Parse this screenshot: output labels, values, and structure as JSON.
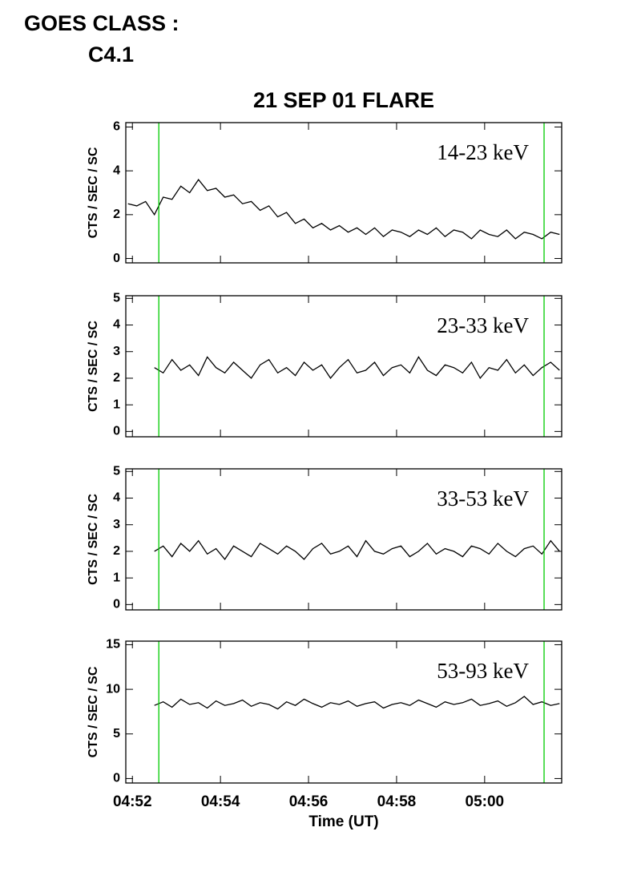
{
  "header": {
    "label": "GOES CLASS :",
    "value": "C4.1"
  },
  "chart_data": [
    {
      "type": "line",
      "title": "21 SEP 01 FLARE",
      "ylabel": "CTS / SEC / SC",
      "annotation": "14-23 keV",
      "xlim": [
        -0.15,
        9.75
      ],
      "ylim": [
        -0.2,
        6.2
      ],
      "yticks": [
        0,
        2,
        4,
        6
      ],
      "vlines": [
        0.6,
        9.35
      ],
      "vline_color": "#00cc00",
      "color": "#000000",
      "x": [
        -0.1,
        0.1,
        0.3,
        0.5,
        0.7,
        0.9,
        1.1,
        1.3,
        1.5,
        1.7,
        1.9,
        2.1,
        2.3,
        2.5,
        2.7,
        2.9,
        3.1,
        3.3,
        3.5,
        3.7,
        3.9,
        4.1,
        4.3,
        4.5,
        4.7,
        4.9,
        5.1,
        5.3,
        5.5,
        5.7,
        5.9,
        6.1,
        6.3,
        6.5,
        6.7,
        6.9,
        7.1,
        7.3,
        7.5,
        7.7,
        7.9,
        8.1,
        8.3,
        8.5,
        8.7,
        8.9,
        9.1,
        9.3,
        9.5,
        9.7
      ],
      "values": [
        2.5,
        2.4,
        2.6,
        2.0,
        2.8,
        2.7,
        3.3,
        3.0,
        3.6,
        3.1,
        3.2,
        2.8,
        2.9,
        2.5,
        2.6,
        2.2,
        2.4,
        1.9,
        2.1,
        1.6,
        1.8,
        1.4,
        1.6,
        1.3,
        1.5,
        1.2,
        1.4,
        1.1,
        1.4,
        1.0,
        1.3,
        1.2,
        1.0,
        1.3,
        1.1,
        1.4,
        1.0,
        1.3,
        1.2,
        0.9,
        1.3,
        1.1,
        1.0,
        1.3,
        0.9,
        1.2,
        1.1,
        0.9,
        1.2,
        1.1
      ]
    },
    {
      "type": "line",
      "ylabel": "CTS / SEC / SC",
      "annotation": "23-33 keV",
      "xlim": [
        -0.15,
        9.75
      ],
      "ylim": [
        -0.2,
        5.1
      ],
      "yticks": [
        0,
        1,
        2,
        3,
        4,
        5
      ],
      "vlines": [
        0.6,
        9.35
      ],
      "vline_color": "#00cc00",
      "color": "#000000",
      "x": [
        0.5,
        0.7,
        0.9,
        1.1,
        1.3,
        1.5,
        1.7,
        1.9,
        2.1,
        2.3,
        2.5,
        2.7,
        2.9,
        3.1,
        3.3,
        3.5,
        3.7,
        3.9,
        4.1,
        4.3,
        4.5,
        4.7,
        4.9,
        5.1,
        5.3,
        5.5,
        5.7,
        5.9,
        6.1,
        6.3,
        6.5,
        6.7,
        6.9,
        7.1,
        7.3,
        7.5,
        7.7,
        7.9,
        8.1,
        8.3,
        8.5,
        8.7,
        8.9,
        9.1,
        9.3,
        9.5,
        9.7
      ],
      "values": [
        2.4,
        2.2,
        2.7,
        2.3,
        2.5,
        2.1,
        2.8,
        2.4,
        2.2,
        2.6,
        2.3,
        2.0,
        2.5,
        2.7,
        2.2,
        2.4,
        2.1,
        2.6,
        2.3,
        2.5,
        2.0,
        2.4,
        2.7,
        2.2,
        2.3,
        2.6,
        2.1,
        2.4,
        2.5,
        2.2,
        2.8,
        2.3,
        2.1,
        2.5,
        2.4,
        2.2,
        2.6,
        2.0,
        2.4,
        2.3,
        2.7,
        2.2,
        2.5,
        2.1,
        2.4,
        2.6,
        2.3
      ]
    },
    {
      "type": "line",
      "ylabel": "CTS / SEC / SC",
      "annotation": "33-53 keV",
      "xlim": [
        -0.15,
        9.75
      ],
      "ylim": [
        -0.2,
        5.1
      ],
      "yticks": [
        0,
        1,
        2,
        3,
        4,
        5
      ],
      "vlines": [
        0.6,
        9.35
      ],
      "vline_color": "#00cc00",
      "color": "#000000",
      "x": [
        0.5,
        0.7,
        0.9,
        1.1,
        1.3,
        1.5,
        1.7,
        1.9,
        2.1,
        2.3,
        2.5,
        2.7,
        2.9,
        3.1,
        3.3,
        3.5,
        3.7,
        3.9,
        4.1,
        4.3,
        4.5,
        4.7,
        4.9,
        5.1,
        5.3,
        5.5,
        5.7,
        5.9,
        6.1,
        6.3,
        6.5,
        6.7,
        6.9,
        7.1,
        7.3,
        7.5,
        7.7,
        7.9,
        8.1,
        8.3,
        8.5,
        8.7,
        8.9,
        9.1,
        9.3,
        9.5,
        9.7
      ],
      "values": [
        2.0,
        2.2,
        1.8,
        2.3,
        2.0,
        2.4,
        1.9,
        2.1,
        1.7,
        2.2,
        2.0,
        1.8,
        2.3,
        2.1,
        1.9,
        2.2,
        2.0,
        1.7,
        2.1,
        2.3,
        1.9,
        2.0,
        2.2,
        1.8,
        2.4,
        2.0,
        1.9,
        2.1,
        2.2,
        1.8,
        2.0,
        2.3,
        1.9,
        2.1,
        2.0,
        1.8,
        2.2,
        2.1,
        1.9,
        2.3,
        2.0,
        1.8,
        2.1,
        2.2,
        1.9,
        2.4,
        2.0
      ]
    },
    {
      "type": "line",
      "ylabel": "CTS / SEC / SC",
      "annotation": "53-93 keV",
      "xlabel": "Time (UT)",
      "xlim": [
        -0.15,
        9.75
      ],
      "ylim": [
        -0.5,
        15.4
      ],
      "yticks": [
        0,
        5,
        10,
        15
      ],
      "vlines": [
        0.6,
        9.35
      ],
      "vline_color": "#00cc00",
      "color": "#000000",
      "xticks": [
        {
          "value": 0,
          "label": "04:52"
        },
        {
          "value": 2,
          "label": "04:54"
        },
        {
          "value": 4,
          "label": "04:56"
        },
        {
          "value": 6,
          "label": "04:58"
        },
        {
          "value": 8,
          "label": "05:00"
        }
      ],
      "x": [
        0.5,
        0.7,
        0.9,
        1.1,
        1.3,
        1.5,
        1.7,
        1.9,
        2.1,
        2.3,
        2.5,
        2.7,
        2.9,
        3.1,
        3.3,
        3.5,
        3.7,
        3.9,
        4.1,
        4.3,
        4.5,
        4.7,
        4.9,
        5.1,
        5.3,
        5.5,
        5.7,
        5.9,
        6.1,
        6.3,
        6.5,
        6.7,
        6.9,
        7.1,
        7.3,
        7.5,
        7.7,
        7.9,
        8.1,
        8.3,
        8.5,
        8.7,
        8.9,
        9.1,
        9.3,
        9.5,
        9.7
      ],
      "values": [
        8.2,
        8.6,
        8.0,
        8.9,
        8.3,
        8.5,
        7.9,
        8.7,
        8.2,
        8.4,
        8.8,
        8.1,
        8.5,
        8.3,
        7.8,
        8.6,
        8.2,
        8.9,
        8.4,
        8.0,
        8.5,
        8.3,
        8.7,
        8.1,
        8.4,
        8.6,
        7.9,
        8.3,
        8.5,
        8.2,
        8.8,
        8.4,
        8.0,
        8.6,
        8.3,
        8.5,
        8.9,
        8.2,
        8.4,
        8.7,
        8.1,
        8.5,
        9.2,
        8.3,
        8.6,
        8.2,
        8.4
      ]
    }
  ]
}
